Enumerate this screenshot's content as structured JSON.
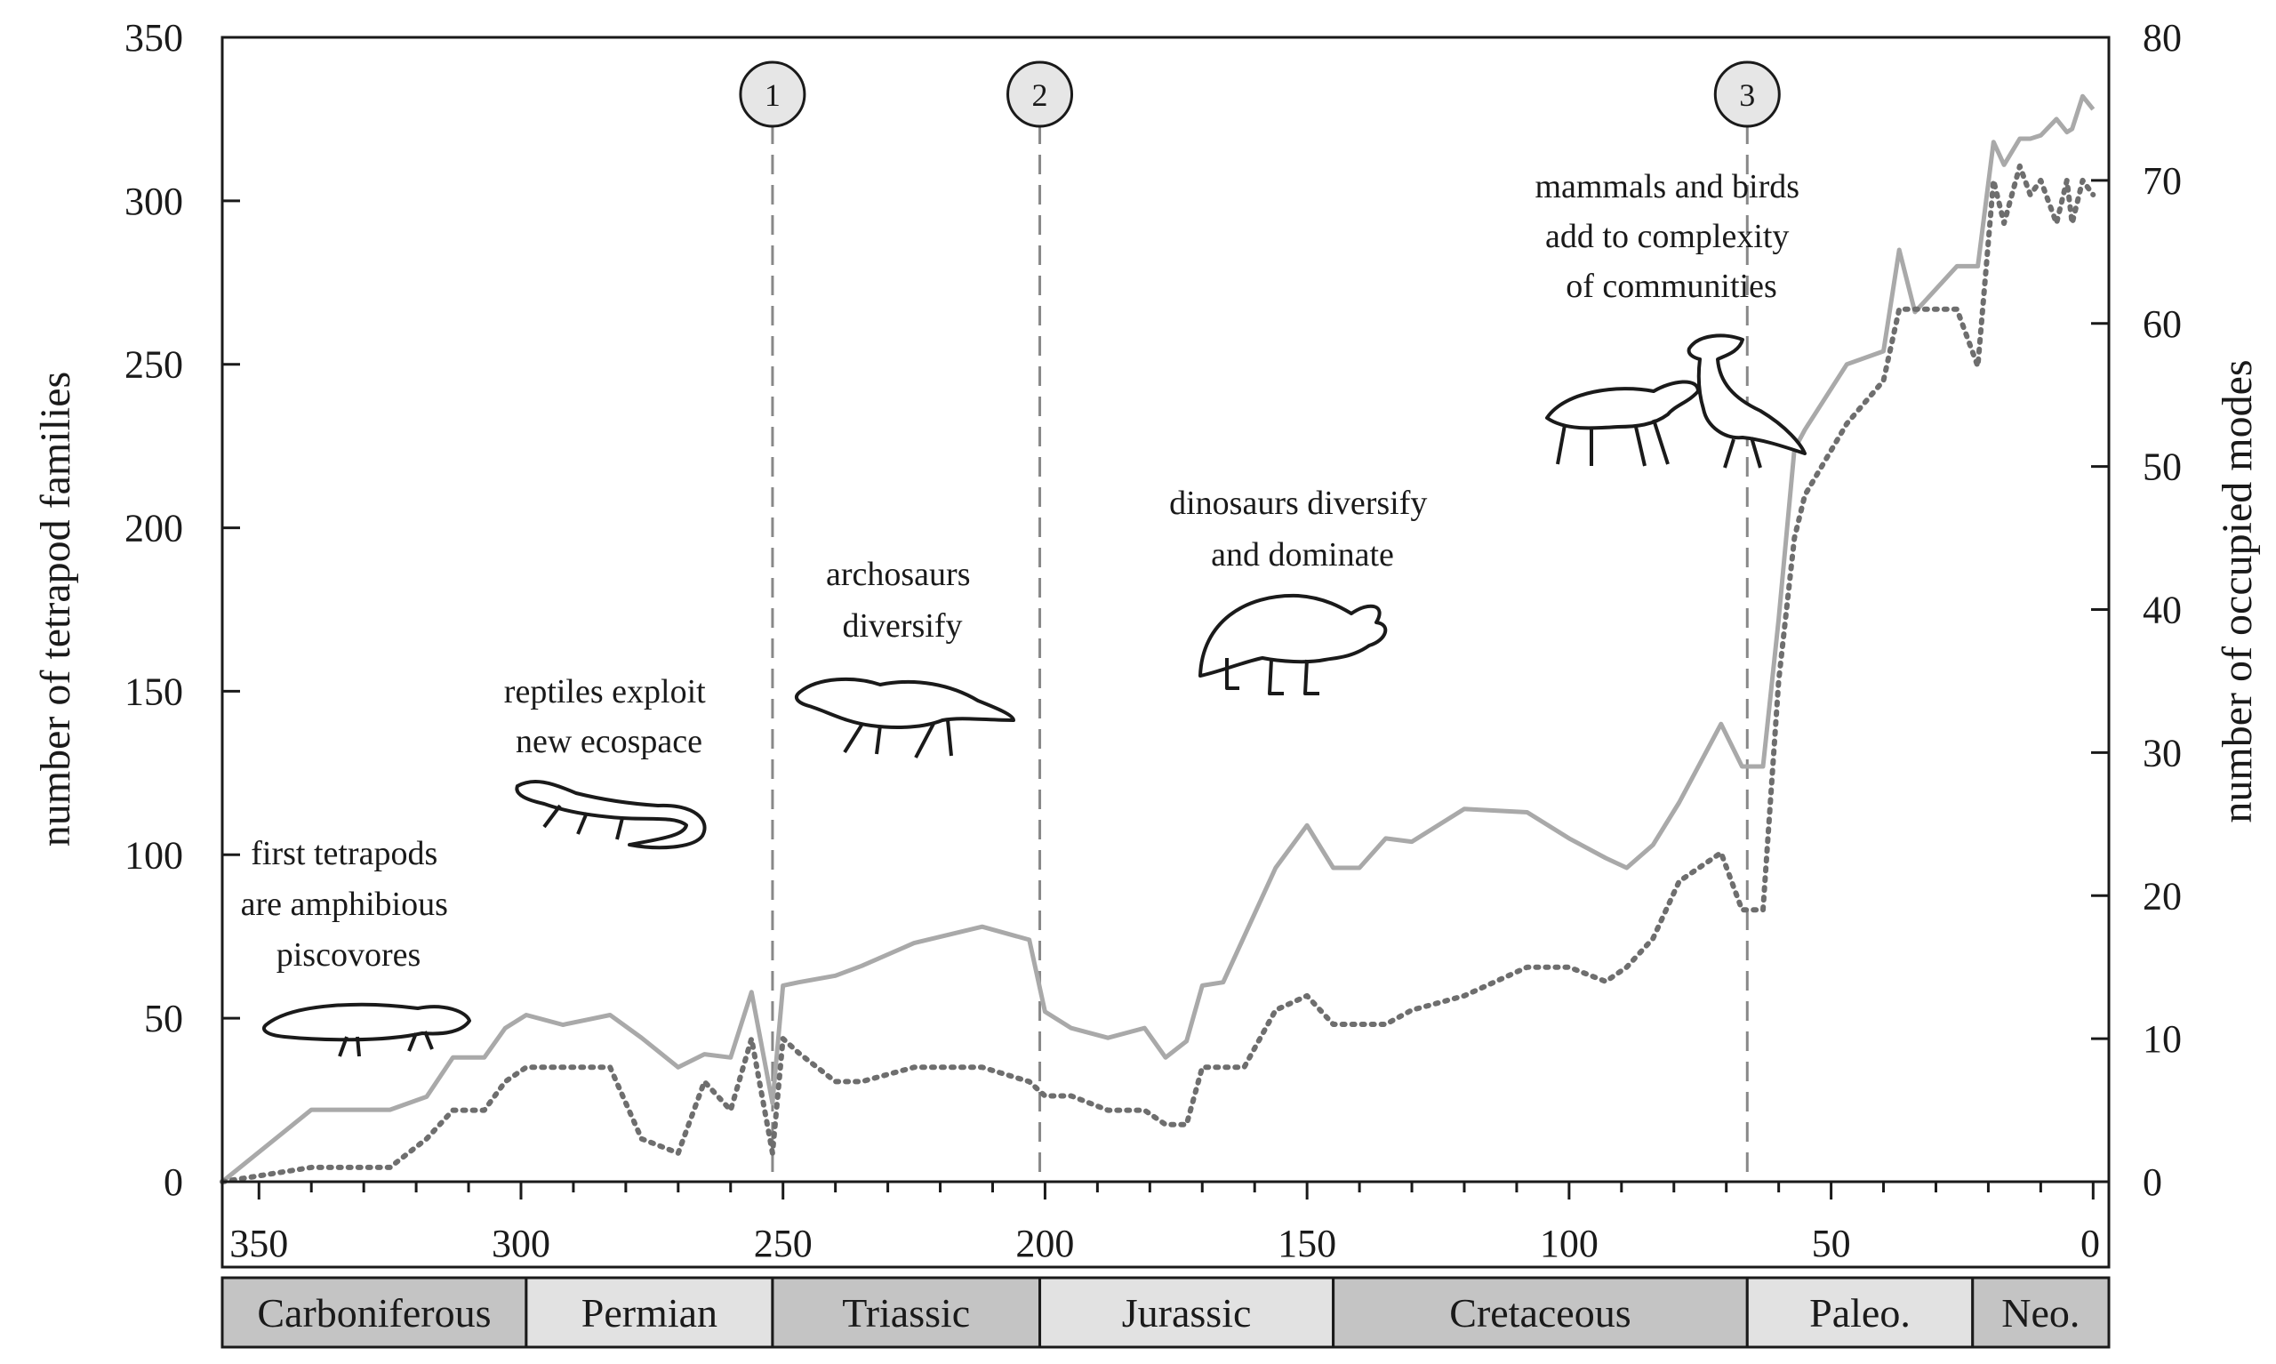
{
  "chart_data": {
    "type": "line",
    "title": "",
    "xlabel": "",
    "ylabel": "number of tetrapod families",
    "y2label": "number of occupied modes",
    "xlim": [
      357,
      -3
    ],
    "ylim": [
      0,
      350
    ],
    "y2lim": [
      0,
      80
    ],
    "x_ticks": [
      350,
      300,
      250,
      200,
      150,
      100,
      50,
      0
    ],
    "y_ticks": [
      0,
      50,
      100,
      150,
      200,
      250,
      300,
      350
    ],
    "y2_ticks": [
      0,
      10,
      20,
      30,
      40,
      50,
      60,
      70,
      80
    ],
    "grid": false,
    "series": [
      {
        "axis": "left",
        "style": "solid",
        "color": "#a9a9a9",
        "x": [
          357,
          340,
          325,
          318,
          313,
          307,
          303,
          299,
          292,
          283,
          277,
          270,
          265,
          260,
          256,
          252,
          250,
          247,
          240,
          235,
          225,
          212,
          203,
          200,
          195,
          188,
          181,
          177,
          173,
          170,
          166,
          162,
          156,
          150,
          145,
          140,
          135,
          130,
          120,
          108,
          100,
          93,
          89,
          84,
          79,
          71,
          67,
          63,
          60,
          57,
          55,
          47,
          40,
          37,
          34,
          26,
          22,
          19,
          17,
          14,
          12,
          10,
          7,
          5,
          4,
          2,
          0
        ],
        "values": [
          0,
          22,
          22,
          26,
          38,
          38,
          47,
          51,
          48,
          51,
          44,
          35,
          39,
          38,
          58,
          24,
          60,
          61,
          63,
          66,
          73,
          78,
          74,
          52,
          47,
          44,
          47,
          38,
          43,
          60,
          61,
          75,
          96,
          109,
          96,
          96,
          105,
          104,
          114,
          113,
          105,
          99,
          96,
          103,
          116,
          140,
          127,
          127,
          172,
          224,
          230,
          250,
          254,
          285,
          266,
          280,
          280,
          318,
          311,
          319,
          319,
          320,
          325,
          321,
          322,
          332,
          328
        ]
      },
      {
        "axis": "right",
        "style": "dotted",
        "color": "#6e6e6e",
        "x": [
          357,
          340,
          325,
          318,
          313,
          307,
          303,
          299,
          292,
          283,
          277,
          270,
          265,
          260,
          256,
          252,
          250,
          247,
          240,
          235,
          225,
          212,
          203,
          200,
          195,
          188,
          181,
          177,
          173,
          170,
          166,
          162,
          156,
          150,
          145,
          140,
          135,
          130,
          120,
          108,
          100,
          93,
          89,
          84,
          79,
          71,
          67,
          63,
          60,
          57,
          55,
          47,
          40,
          37,
          34,
          26,
          22,
          19,
          17,
          14,
          12,
          10,
          7,
          5,
          4,
          2,
          0
        ],
        "values": [
          0,
          1,
          1,
          3,
          5,
          5,
          7,
          8,
          8,
          8,
          3,
          2,
          7,
          5,
          10,
          2,
          10,
          9,
          7,
          7,
          8,
          8,
          7,
          6,
          6,
          5,
          5,
          4,
          4,
          8,
          8,
          8,
          12,
          13,
          11,
          11,
          11,
          12,
          13,
          15,
          15,
          14,
          15,
          17,
          21,
          23,
          19,
          19,
          35,
          45,
          48,
          53,
          56,
          61,
          61,
          61,
          57,
          70,
          67,
          71,
          69,
          70,
          67,
          70,
          67,
          70,
          69
        ]
      }
    ],
    "events": [
      {
        "label": "1",
        "x": 252
      },
      {
        "label": "2",
        "x": 201
      },
      {
        "label": "3",
        "x": 66
      }
    ],
    "periods": [
      {
        "label": "Carboniferous",
        "start": 358,
        "end": 299,
        "color": "#c4c4c4"
      },
      {
        "label": "Permian",
        "start": 299,
        "end": 252,
        "color": "#e2e2e2"
      },
      {
        "label": "Triassic",
        "start": 252,
        "end": 201,
        "color": "#c4c4c4"
      },
      {
        "label": "Jurassic",
        "start": 201,
        "end": 145,
        "color": "#e2e2e2"
      },
      {
        "label": "Cretaceous",
        "start": 145,
        "end": 66,
        "color": "#c4c4c4"
      },
      {
        "label": "Paleo.",
        "start": 66,
        "end": 23,
        "color": "#e2e2e2"
      },
      {
        "label": "Neo.",
        "start": 23,
        "end": -3,
        "color": "#c4c4c4"
      }
    ],
    "annotations": [
      {
        "id": "tetrapods",
        "lines": [
          "first tetrapods",
          "are amphibious",
          "piscovores"
        ]
      },
      {
        "id": "reptiles",
        "lines": [
          "reptiles exploit",
          "new ecospace"
        ]
      },
      {
        "id": "archosaurs",
        "lines": [
          "archosaurs",
          "diversify"
        ]
      },
      {
        "id": "dinosaurs",
        "lines": [
          "dinosaurs diversify",
          "and dominate"
        ]
      },
      {
        "id": "mammals",
        "lines": [
          "mammals and birds",
          "add to complexity",
          "of communities"
        ]
      }
    ],
    "colors": {
      "solid_line": "#a9a9a9",
      "dotted_line": "#6e6e6e",
      "event_line": "#888888",
      "event_circle": "#e6e6e6"
    }
  }
}
